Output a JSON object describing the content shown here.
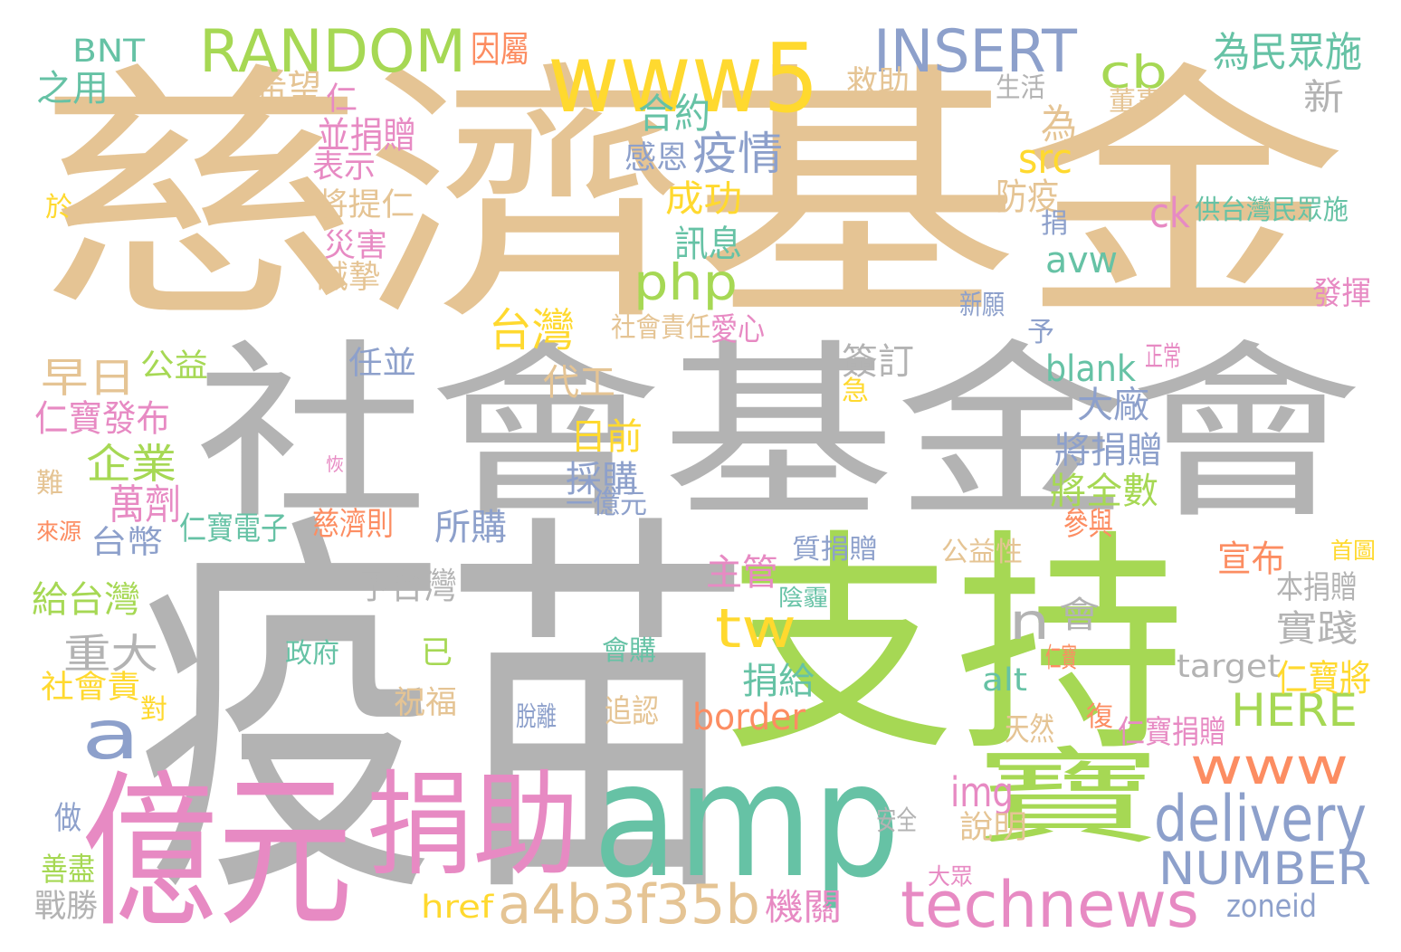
{
  "words": [
    {
      "text": "慈濟基金",
      "color": "#e5c494"
    },
    {
      "text": "社會基金會",
      "color": "#b3b3b3"
    },
    {
      "text": "疫苗",
      "color": "#b3b3b3"
    },
    {
      "text": "支持",
      "color": "#a6d854"
    },
    {
      "text": "amp",
      "color": "#66c2a5"
    },
    {
      "text": "億元",
      "color": "#e78ac3"
    },
    {
      "text": "捐助",
      "color": "#e78ac3"
    },
    {
      "text": "寶",
      "color": "#a6d854"
    },
    {
      "text": "www5",
      "color": "#ffd92f"
    },
    {
      "text": "RANDOM",
      "color": "#a6d854"
    },
    {
      "text": "INSERT",
      "color": "#8da0cb"
    },
    {
      "text": "a",
      "color": "#8da0cb"
    },
    {
      "text": "technews",
      "color": "#e78ac3"
    },
    {
      "text": "a4b3f35b",
      "color": "#e5c494"
    },
    {
      "text": "delivery",
      "color": "#8da0cb"
    },
    {
      "text": "www",
      "color": "#fc8d62"
    },
    {
      "text": "NUMBER",
      "color": "#8da0cb"
    },
    {
      "text": "php",
      "color": "#a6d854"
    },
    {
      "text": "cb",
      "color": "#a6d854"
    },
    {
      "text": "tw",
      "color": "#ffd92f"
    },
    {
      "text": "HERE",
      "color": "#a6d854"
    },
    {
      "text": "n",
      "color": "#b3b3b3"
    },
    {
      "text": "企業",
      "color": "#a6d854"
    },
    {
      "text": "早日",
      "color": "#e5c494"
    },
    {
      "text": "重大",
      "color": "#b3b3b3"
    },
    {
      "text": "萬劑",
      "color": "#e78ac3"
    },
    {
      "text": "台灣",
      "color": "#ffd92f"
    },
    {
      "text": "疫情",
      "color": "#8da0cb"
    },
    {
      "text": "為",
      "color": "#e5c494"
    },
    {
      "text": "BNT",
      "color": "#66c2a5"
    },
    {
      "text": "之用",
      "color": "#66c2a5"
    },
    {
      "text": "希望",
      "color": "#e5c494"
    },
    {
      "text": "仁",
      "color": "#e78ac3"
    },
    {
      "text": "並捐贈",
      "color": "#e78ac3"
    },
    {
      "text": "表示",
      "color": "#e78ac3"
    },
    {
      "text": "於",
      "color": "#ffd92f"
    },
    {
      "text": "將提仁",
      "color": "#e5c494"
    },
    {
      "text": "災害",
      "color": "#e78ac3"
    },
    {
      "text": "誠摯",
      "color": "#e5c494"
    },
    {
      "text": "因屬",
      "color": "#fc8d62"
    },
    {
      "text": "合約",
      "color": "#66c2a5"
    },
    {
      "text": "成功",
      "color": "#ffd92f"
    },
    {
      "text": "訊息",
      "color": "#66c2a5"
    },
    {
      "text": "救助",
      "color": "#e5c494"
    },
    {
      "text": "感恩",
      "color": "#8da0cb"
    },
    {
      "text": "src",
      "color": "#ffd92f"
    },
    {
      "text": "防疫",
      "color": "#e5c494"
    },
    {
      "text": "ck",
      "color": "#e78ac3"
    },
    {
      "text": "avw",
      "color": "#66c2a5"
    },
    {
      "text": "為民眾施",
      "color": "#66c2a5"
    },
    {
      "text": "生活",
      "color": "#b3b3b3"
    },
    {
      "text": "董事",
      "color": "#e5c494"
    },
    {
      "text": "新",
      "color": "#b3b3b3"
    },
    {
      "text": "供台灣民眾施",
      "color": "#66c2a5"
    },
    {
      "text": "捐",
      "color": "#8da0cb"
    },
    {
      "text": "新願",
      "color": "#8da0cb"
    },
    {
      "text": "予",
      "color": "#8da0cb"
    },
    {
      "text": "發揮",
      "color": "#e78ac3"
    },
    {
      "text": "正常",
      "color": "#e78ac3"
    },
    {
      "text": "公益",
      "color": "#a6d854"
    },
    {
      "text": "仁寶發布",
      "color": "#e78ac3"
    },
    {
      "text": "任並",
      "color": "#8da0cb"
    },
    {
      "text": "代工",
      "color": "#e5c494"
    },
    {
      "text": "簽訂",
      "color": "#b3b3b3"
    },
    {
      "text": "急",
      "color": "#ffd92f"
    },
    {
      "text": "blank",
      "color": "#66c2a5"
    },
    {
      "text": "大廠",
      "color": "#8da0cb"
    },
    {
      "text": "社會責任",
      "color": "#e5c494"
    },
    {
      "text": "愛心",
      "color": "#e78ac3"
    },
    {
      "text": "日前",
      "color": "#ffd92f"
    },
    {
      "text": "將捐贈",
      "color": "#8da0cb"
    },
    {
      "text": "採購",
      "color": "#8da0cb"
    },
    {
      "text": "將全數",
      "color": "#a6d854"
    },
    {
      "text": "一億元",
      "color": "#8da0cb"
    },
    {
      "text": "難",
      "color": "#e5c494"
    },
    {
      "text": "恢",
      "color": "#e78ac3"
    },
    {
      "text": "仁寶電子",
      "color": "#66c2a5"
    },
    {
      "text": "慈濟則",
      "color": "#fc8d62"
    },
    {
      "text": "參與",
      "color": "#fc8d62"
    },
    {
      "text": "來源",
      "color": "#fc8d62"
    },
    {
      "text": "台幣",
      "color": "#8da0cb"
    },
    {
      "text": "所購",
      "color": "#8da0cb"
    },
    {
      "text": "主管",
      "color": "#e78ac3"
    },
    {
      "text": "宣布",
      "color": "#fc8d62"
    },
    {
      "text": "質捐贈",
      "color": "#8da0cb"
    },
    {
      "text": "公益性",
      "color": "#e5c494"
    },
    {
      "text": "首圖",
      "color": "#ffd92f"
    },
    {
      "text": "本捐贈",
      "color": "#b3b3b3"
    },
    {
      "text": "會",
      "color": "#b3b3b3"
    },
    {
      "text": "予台灣",
      "color": "#b3b3b3"
    },
    {
      "text": "給台灣",
      "color": "#a6d854"
    },
    {
      "text": "陰霾",
      "color": "#66c2a5"
    },
    {
      "text": "實踐",
      "color": "#b3b3b3"
    },
    {
      "text": "已",
      "color": "#a6d854"
    },
    {
      "text": "政府",
      "color": "#66c2a5"
    },
    {
      "text": "會購",
      "color": "#66c2a5"
    },
    {
      "text": "仁寶",
      "color": "#fc8d62"
    },
    {
      "text": "target",
      "color": "#b3b3b3"
    },
    {
      "text": "仁寶將",
      "color": "#ffd92f"
    },
    {
      "text": "捐給",
      "color": "#66c2a5"
    },
    {
      "text": "alt",
      "color": "#66c2a5"
    },
    {
      "text": "社會責",
      "color": "#ffd92f"
    },
    {
      "text": "祝福",
      "color": "#e5c494"
    },
    {
      "text": "對",
      "color": "#ffd92f"
    },
    {
      "text": "border",
      "color": "#fc8d62"
    },
    {
      "text": "脫離",
      "color": "#8da0cb"
    },
    {
      "text": "追認",
      "color": "#e5c494"
    },
    {
      "text": "天然",
      "color": "#e5c494"
    },
    {
      "text": "復",
      "color": "#fc8d62"
    },
    {
      "text": "仁寶捐贈",
      "color": "#e78ac3"
    },
    {
      "text": "img",
      "color": "#e78ac3"
    },
    {
      "text": "做",
      "color": "#8da0cb"
    },
    {
      "text": "說明",
      "color": "#e5c494"
    },
    {
      "text": "安全",
      "color": "#b3b3b3"
    },
    {
      "text": "善盡",
      "color": "#a6d854"
    },
    {
      "text": "大眾",
      "color": "#e78ac3"
    },
    {
      "text": "戰勝",
      "color": "#b3b3b3"
    },
    {
      "text": "href",
      "color": "#ffd92f"
    },
    {
      "text": "機關",
      "color": "#e78ac3"
    },
    {
      "text": "zoneid",
      "color": "#8da0cb"
    }
  ]
}
